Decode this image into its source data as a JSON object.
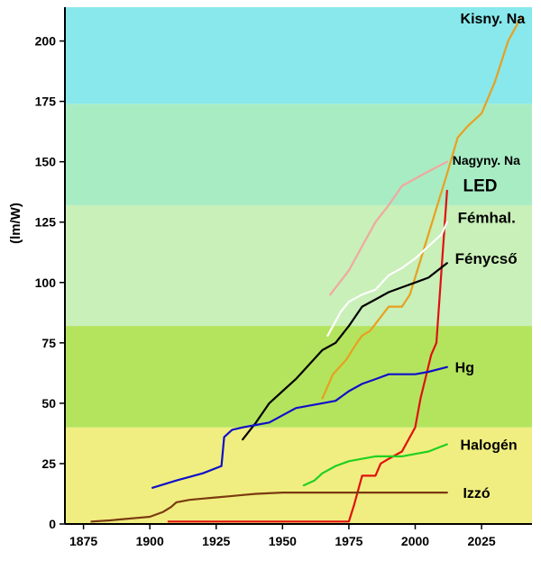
{
  "chart_data": {
    "type": "line",
    "title": "",
    "xlabel": "",
    "ylabel": "(lm/W)",
    "xlim": [
      1868,
      2044
    ],
    "ylim": [
      0,
      214
    ],
    "x_ticks": [
      1875,
      1900,
      1925,
      1950,
      1975,
      2000,
      2025
    ],
    "y_ticks": [
      0,
      25,
      50,
      75,
      100,
      125,
      150,
      175,
      200
    ],
    "grid": false,
    "legend": "none (series labelled directly at line ends)",
    "background_bands": [
      {
        "from": 0,
        "to": 40,
        "color": "#f0ee80"
      },
      {
        "from": 40,
        "to": 82,
        "color": "#b4e45e"
      },
      {
        "from": 82,
        "to": 132,
        "color": "#c8f0b8"
      },
      {
        "from": 132,
        "to": 174,
        "color": "#a8ecc4"
      },
      {
        "from": 174,
        "to": 214,
        "color": "#88e8ec"
      }
    ],
    "series": [
      {
        "name": "Kisny. Na",
        "color": "#e8a020",
        "points": [
          [
            1965,
            52
          ],
          [
            1969,
            62
          ],
          [
            1974,
            68
          ],
          [
            1978,
            75
          ],
          [
            1980,
            78
          ],
          [
            1983,
            80
          ],
          [
            1990,
            90
          ],
          [
            1995,
            90
          ],
          [
            1998,
            95
          ],
          [
            2005,
            120
          ],
          [
            2012,
            145
          ],
          [
            2016,
            160
          ],
          [
            2020,
            165
          ],
          [
            2025,
            170
          ],
          [
            2030,
            183
          ],
          [
            2035,
            200
          ],
          [
            2040,
            210
          ]
        ]
      },
      {
        "name": "Nagyny. Na",
        "color": "#f0a8a0",
        "points": [
          [
            1968,
            95
          ],
          [
            1975,
            105
          ],
          [
            1980,
            115
          ],
          [
            1985,
            125
          ],
          [
            1990,
            132
          ],
          [
            1995,
            140
          ],
          [
            2000,
            143
          ],
          [
            2005,
            146
          ],
          [
            2012,
            150
          ]
        ]
      },
      {
        "name": "LED",
        "color": "#e01010",
        "points": [
          [
            1907,
            1
          ],
          [
            1925,
            1
          ],
          [
            1950,
            1
          ],
          [
            1975,
            1
          ],
          [
            1977,
            8
          ],
          [
            1980,
            20
          ],
          [
            1985,
            20
          ],
          [
            1987,
            25
          ],
          [
            1990,
            27
          ],
          [
            1995,
            30
          ],
          [
            2000,
            40
          ],
          [
            2002,
            52
          ],
          [
            2006,
            70
          ],
          [
            2008,
            75
          ],
          [
            2012,
            138
          ]
        ]
      },
      {
        "name": "Fémhal.",
        "color": "#ffffff",
        "points": [
          [
            1967,
            78
          ],
          [
            1972,
            88
          ],
          [
            1975,
            92
          ],
          [
            1980,
            95
          ],
          [
            1985,
            97
          ],
          [
            1990,
            103
          ],
          [
            1995,
            106
          ],
          [
            2000,
            110
          ],
          [
            2005,
            115
          ],
          [
            2010,
            120
          ],
          [
            2012,
            125
          ]
        ]
      },
      {
        "name": "Fénycső",
        "color": "#000000",
        "points": [
          [
            1935,
            35
          ],
          [
            1940,
            42
          ],
          [
            1945,
            50
          ],
          [
            1950,
            55
          ],
          [
            1955,
            60
          ],
          [
            1960,
            66
          ],
          [
            1965,
            72
          ],
          [
            1970,
            75
          ],
          [
            1975,
            82
          ],
          [
            1980,
            90
          ],
          [
            1985,
            93
          ],
          [
            1990,
            96
          ],
          [
            1995,
            98
          ],
          [
            2000,
            100
          ],
          [
            2005,
            102
          ],
          [
            2012,
            108
          ]
        ]
      },
      {
        "name": "Hg",
        "color": "#1010c8",
        "points": [
          [
            1901,
            15
          ],
          [
            1910,
            18
          ],
          [
            1920,
            21
          ],
          [
            1927,
            24
          ],
          [
            1928,
            36
          ],
          [
            1931,
            39
          ],
          [
            1935,
            40
          ],
          [
            1940,
            41
          ],
          [
            1945,
            42
          ],
          [
            1950,
            45
          ],
          [
            1955,
            48
          ],
          [
            1960,
            49
          ],
          [
            1965,
            50
          ],
          [
            1970,
            51
          ],
          [
            1975,
            55
          ],
          [
            1980,
            58
          ],
          [
            1985,
            60
          ],
          [
            1990,
            62
          ],
          [
            1995,
            62
          ],
          [
            2000,
            62
          ],
          [
            2005,
            63
          ],
          [
            2012,
            65
          ]
        ]
      },
      {
        "name": "Halogén",
        "color": "#20d020",
        "points": [
          [
            1958,
            16
          ],
          [
            1962,
            18
          ],
          [
            1965,
            21
          ],
          [
            1970,
            24
          ],
          [
            1975,
            26
          ],
          [
            1980,
            27
          ],
          [
            1985,
            28
          ],
          [
            1990,
            28
          ],
          [
            1995,
            28
          ],
          [
            2000,
            29
          ],
          [
            2005,
            30
          ],
          [
            2012,
            33
          ]
        ]
      },
      {
        "name": "Izzó",
        "color": "#7a3a10",
        "points": [
          [
            1878,
            1
          ],
          [
            1885,
            1.5
          ],
          [
            1890,
            2
          ],
          [
            1895,
            2.5
          ],
          [
            1900,
            3
          ],
          [
            1905,
            5
          ],
          [
            1908,
            7
          ],
          [
            1910,
            9
          ],
          [
            1915,
            10
          ],
          [
            1920,
            10.5
          ],
          [
            1925,
            11
          ],
          [
            1930,
            11.5
          ],
          [
            1935,
            12
          ],
          [
            1940,
            12.5
          ],
          [
            1950,
            13
          ],
          [
            1960,
            13
          ],
          [
            1970,
            13
          ],
          [
            1980,
            13
          ],
          [
            2000,
            13
          ],
          [
            2012,
            13
          ]
        ]
      }
    ],
    "labels": [
      {
        "text": "Kisny. Na",
        "x": 2017,
        "y": 209.5
      },
      {
        "text": "Nagyny. Na",
        "x": 2014,
        "y": 151
      },
      {
        "text": "LED",
        "x": 2018,
        "y": 140
      },
      {
        "text": "Fémhal.",
        "x": 2016,
        "y": 127
      },
      {
        "text": "Fénycső",
        "x": 2015,
        "y": 110
      },
      {
        "text": "Hg",
        "x": 2015,
        "y": 65
      },
      {
        "text": "Halogén",
        "x": 2017,
        "y": 33
      },
      {
        "text": "Izzó",
        "x": 2018,
        "y": 13
      }
    ]
  }
}
